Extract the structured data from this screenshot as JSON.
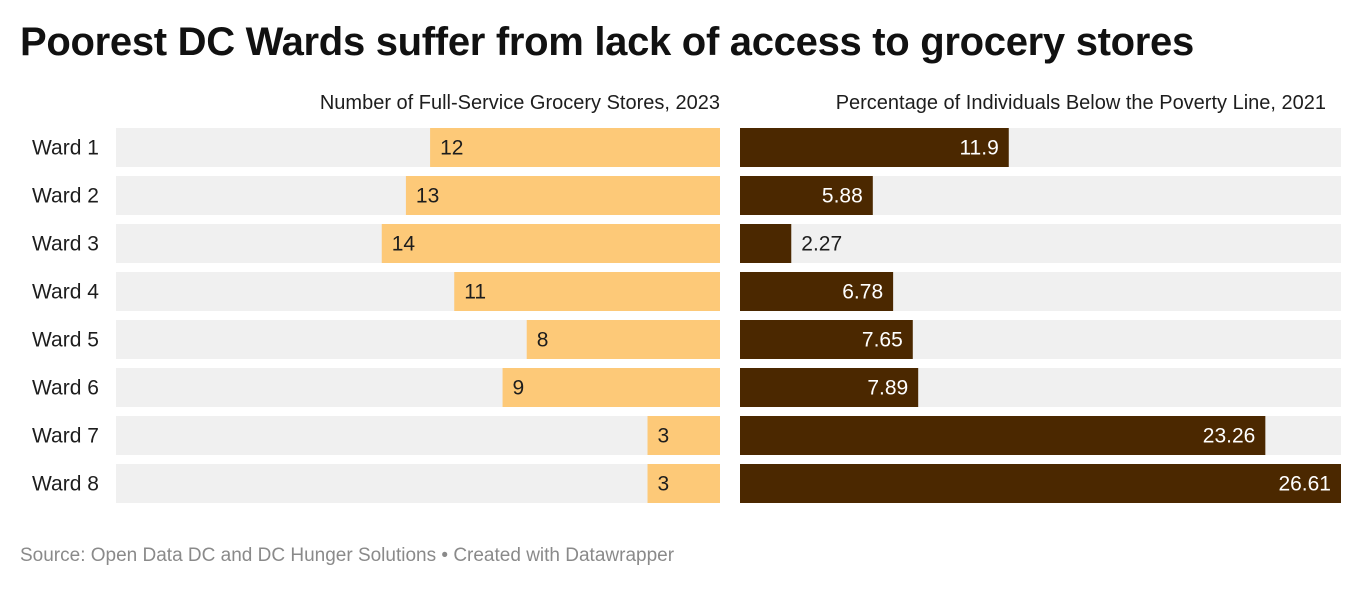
{
  "title": "Poorest DC Wards suffer from lack of access to grocery stores",
  "footer": "Source: Open Data DC and DC Hunger Solutions • Created with Datawrapper",
  "colors": {
    "track": "#f0f0f0",
    "stores_bar": "#fdc978",
    "poverty_bar": "#4b2800",
    "label_dark": "#1d1d1d",
    "label_light": "#ffffff"
  },
  "chart_data": [
    {
      "type": "bar",
      "orientation": "horizontal",
      "direction": "right-to-left",
      "title": "Number of Full-Service Grocery Stores, 2023",
      "categories": [
        "Ward 1",
        "Ward 2",
        "Ward 3",
        "Ward 4",
        "Ward 5",
        "Ward 6",
        "Ward 7",
        "Ward 8"
      ],
      "values": [
        12,
        13,
        14,
        11,
        8,
        9,
        3,
        3
      ],
      "xlim": [
        0,
        25
      ]
    },
    {
      "type": "bar",
      "orientation": "horizontal",
      "direction": "left-to-right",
      "title": "Percentage of Individuals Below the Poverty Line, 2021",
      "categories": [
        "Ward 1",
        "Ward 2",
        "Ward 3",
        "Ward 4",
        "Ward 5",
        "Ward 6",
        "Ward 7",
        "Ward 8"
      ],
      "values": [
        "11.9",
        "5.88",
        "2.27",
        "6.78",
        "7.65",
        "7.89",
        "23.26",
        "26.61"
      ],
      "xlim": [
        0,
        26.61
      ]
    }
  ]
}
